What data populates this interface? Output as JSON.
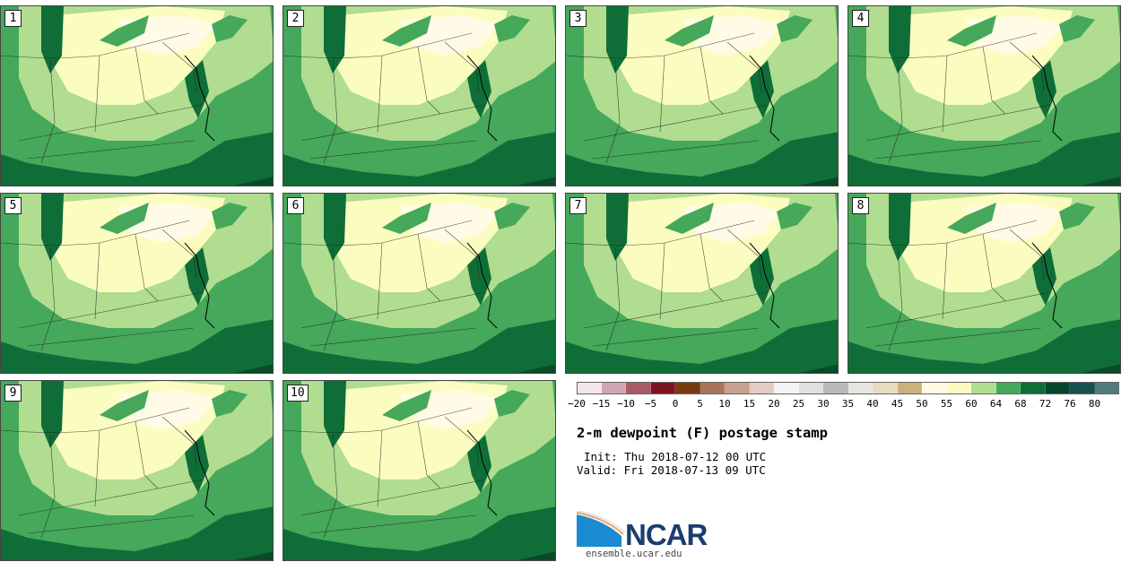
{
  "panels": [
    {
      "label": "1"
    },
    {
      "label": "2"
    },
    {
      "label": "3"
    },
    {
      "label": "4"
    },
    {
      "label": "5"
    },
    {
      "label": "6"
    },
    {
      "label": "7"
    },
    {
      "label": "8"
    },
    {
      "label": "9"
    },
    {
      "label": "10"
    }
  ],
  "colorbar": {
    "ticks": [
      "−20",
      "−15",
      "−10",
      "−5",
      "0",
      "5",
      "10",
      "15",
      "20",
      "25",
      "30",
      "35",
      "40",
      "45",
      "50",
      "55",
      "60",
      "64",
      "68",
      "72",
      "76",
      "80"
    ],
    "colors": [
      "#f3e6ea",
      "#d2a7b3",
      "#a85a66",
      "#7e1420",
      "#7a3a10",
      "#a8745a",
      "#c8a090",
      "#e3cdc3",
      "#f3f3f6",
      "#e0e0e3",
      "#b9b9bc",
      "#e6e6e0",
      "#e8dcc0",
      "#cbb27c",
      "#fffbe6",
      "#fbfdc0",
      "#b0dd90",
      "#45a85a",
      "#0e6e38",
      "#06452a",
      "#175050",
      "#4f7d7d"
    ]
  },
  "title": "2-m dewpoint (F) postage stamp",
  "init": "Init: Thu 2018-07-12 00 UTC",
  "valid": "Valid: Fri 2018-07-13 09 UTC",
  "logo": {
    "text": "NCAR",
    "site": "ensemble.ucar.edu"
  }
}
